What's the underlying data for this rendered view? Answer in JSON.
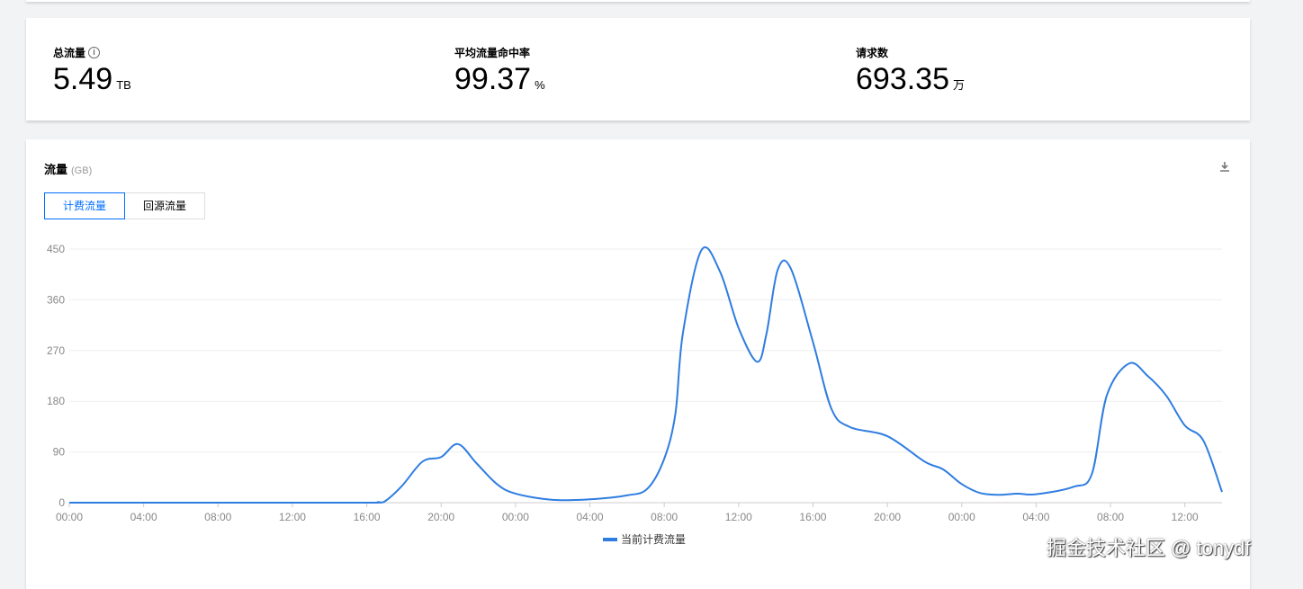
{
  "stats": [
    {
      "label": "总流量",
      "value": "5.49",
      "unit": "TB",
      "info": true
    },
    {
      "label": "平均流量命中率",
      "value": "99.37",
      "unit": "%"
    },
    {
      "label": "请求数",
      "value": "693.35",
      "unit": "万"
    }
  ],
  "panel": {
    "title": "流量",
    "unit": "(GB)",
    "download_icon": "download-icon",
    "tabs": [
      "计费流量",
      "回源流量"
    ],
    "active_tab": 0
  },
  "watermark": "掘金技术社区 @ tonydf",
  "chart_data": {
    "type": "line",
    "xlabel": "",
    "ylabel": "GB",
    "ylim": [
      0,
      450
    ],
    "yticks": [
      0,
      90,
      180,
      270,
      360,
      450
    ],
    "xticks": [
      "00:00",
      "04:00",
      "08:00",
      "12:00",
      "16:00",
      "20:00",
      "00:00",
      "04:00",
      "08:00",
      "12:00",
      "16:00",
      "20:00",
      "00:00",
      "04:00",
      "08:00",
      "12:00"
    ],
    "x_unit": "hours since start",
    "xlim": [
      0,
      62
    ],
    "grid": true,
    "legend": "bottom-center",
    "color": "#2f7de1",
    "series": [
      {
        "name": "当前计费流量",
        "points": [
          [
            0,
            0
          ],
          [
            8,
            0
          ],
          [
            16,
            0
          ],
          [
            16.6,
            1
          ],
          [
            17,
            3
          ],
          [
            17.9,
            30
          ],
          [
            19,
            73
          ],
          [
            20,
            81
          ],
          [
            20.9,
            104
          ],
          [
            21.9,
            70
          ],
          [
            23,
            33
          ],
          [
            24,
            16
          ],
          [
            26,
            5
          ],
          [
            28,
            6
          ],
          [
            30,
            13
          ],
          [
            31.1,
            25
          ],
          [
            32,
            78
          ],
          [
            32.6,
            158
          ],
          [
            33,
            300
          ],
          [
            34,
            448
          ],
          [
            35,
            410
          ],
          [
            36,
            310
          ],
          [
            37,
            250
          ],
          [
            37.5,
            300
          ],
          [
            38.1,
            413
          ],
          [
            38.8,
            416
          ],
          [
            40,
            285
          ],
          [
            41,
            166
          ],
          [
            42,
            134
          ],
          [
            44,
            118
          ],
          [
            46,
            73
          ],
          [
            47,
            59
          ],
          [
            48,
            33
          ],
          [
            49,
            17
          ],
          [
            50,
            14
          ],
          [
            51,
            16
          ],
          [
            52,
            15
          ],
          [
            54,
            28
          ],
          [
            55,
            51
          ],
          [
            55.8,
            190
          ],
          [
            57,
            247
          ],
          [
            58,
            225
          ],
          [
            59,
            190
          ],
          [
            60,
            137
          ],
          [
            61,
            110
          ],
          [
            62,
            19
          ]
        ]
      }
    ]
  }
}
